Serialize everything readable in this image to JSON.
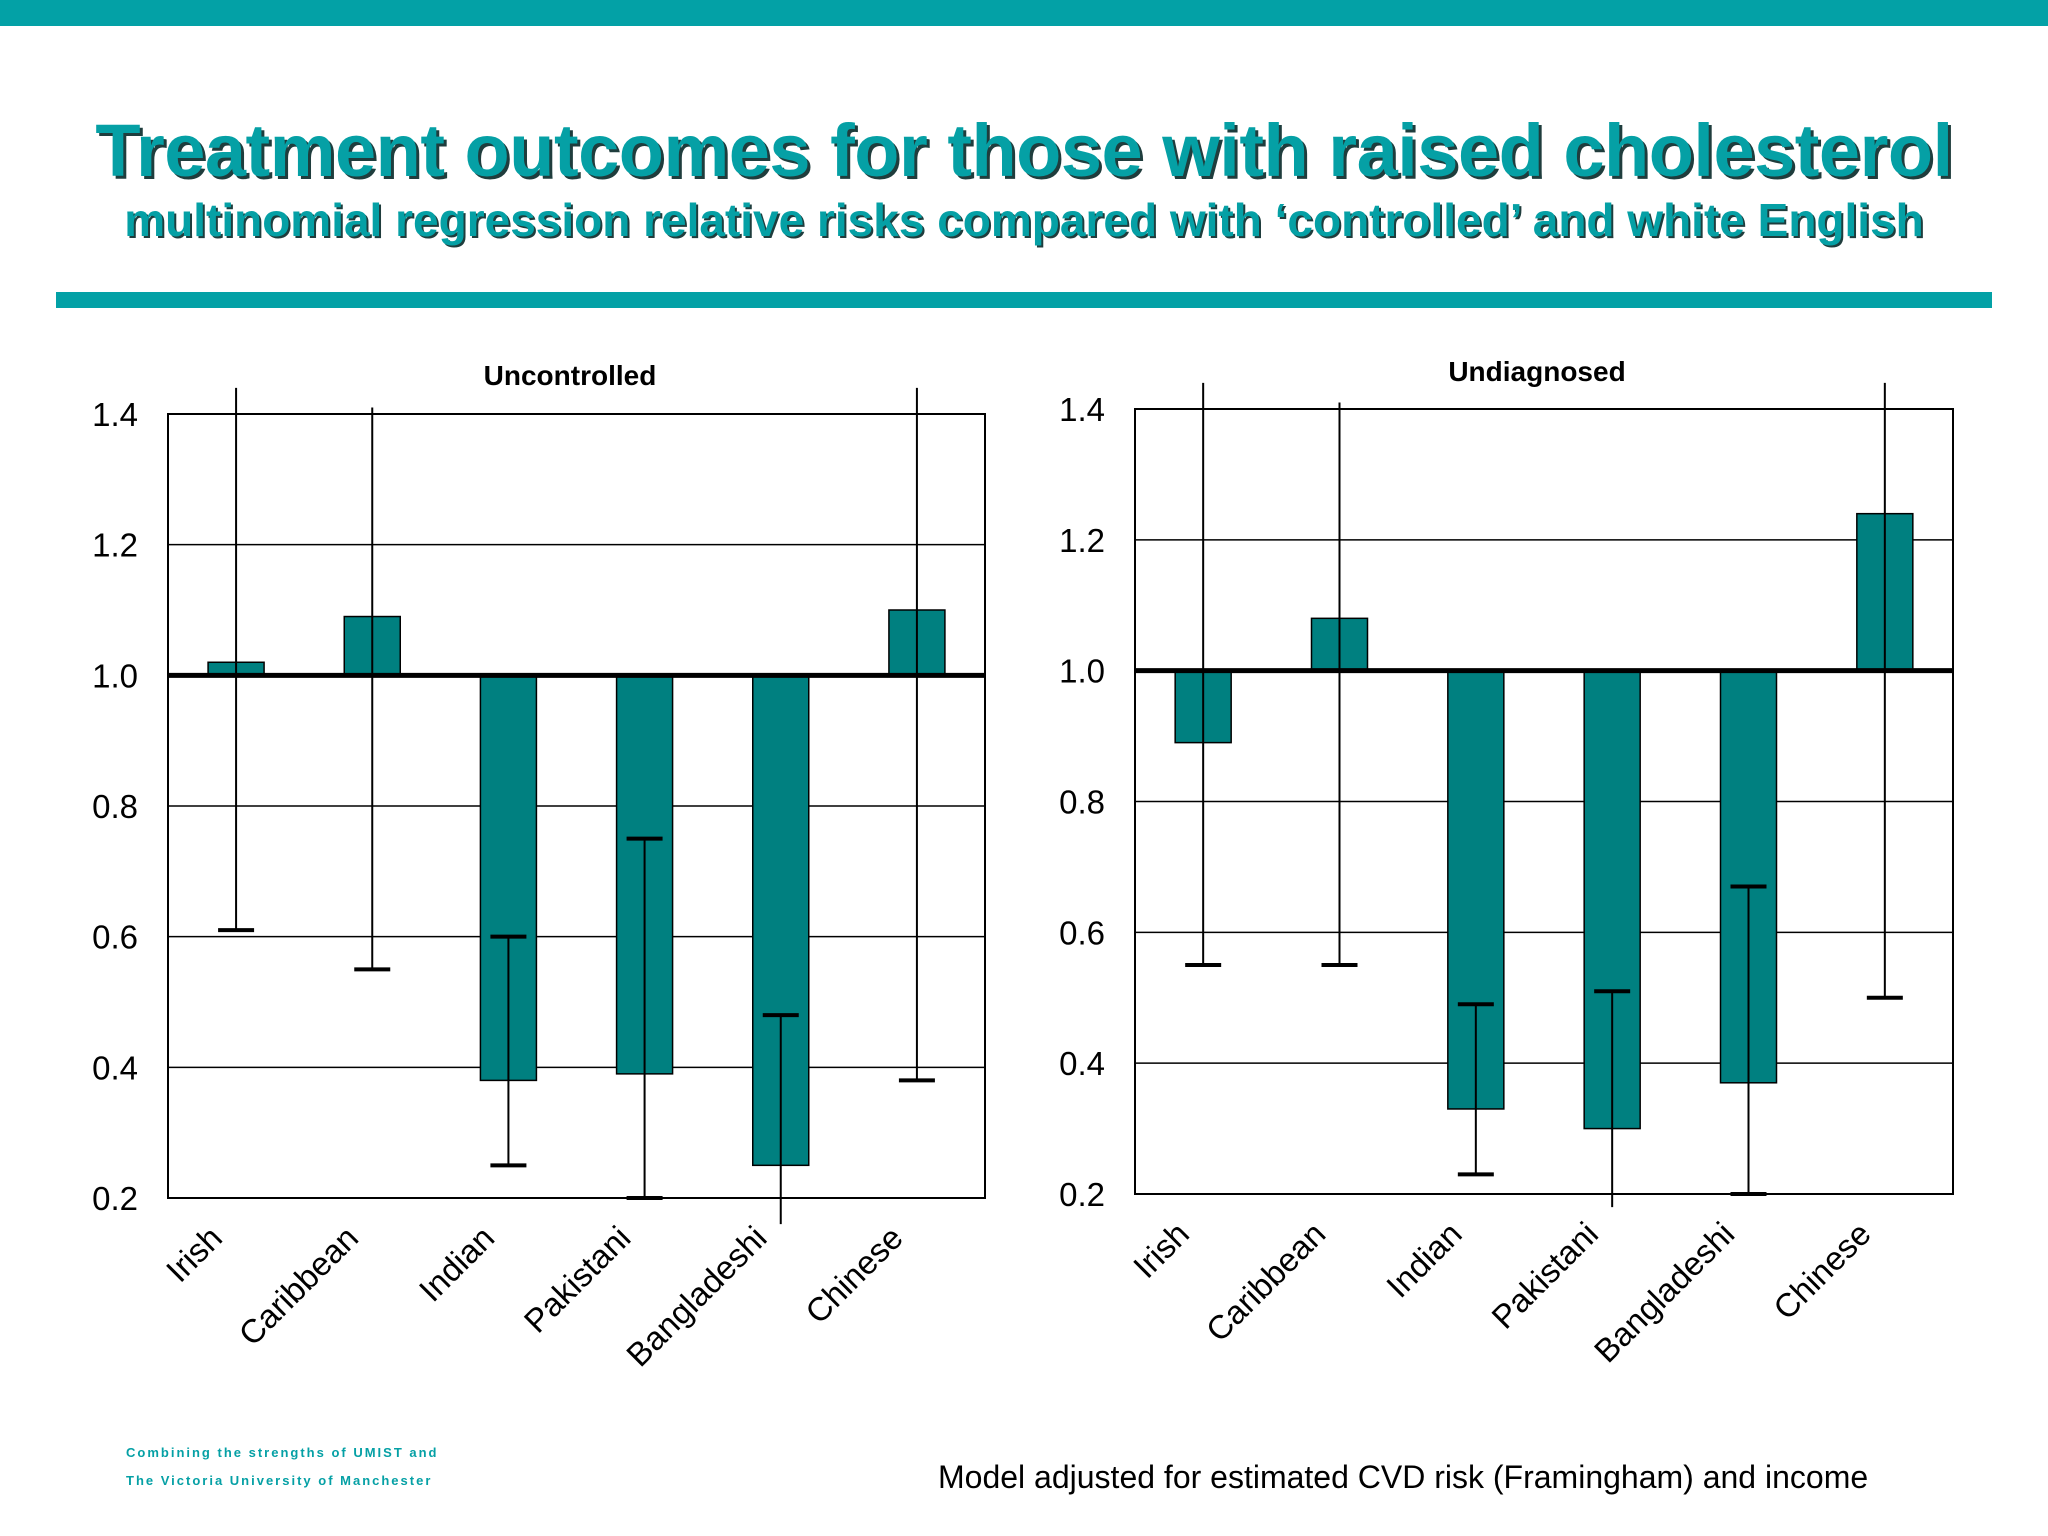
{
  "slide": {
    "title": "Treatment outcomes for those with raised cholesterol",
    "subtitle": "multinomial regression relative risks compared with ‘controlled’ and white English",
    "footnote": "Model adjusted for estimated CVD risk (Framingham) and income",
    "logo_line1": "Combining the strengths of UMIST and",
    "logo_line2": "The Victoria University of Manchester"
  },
  "colors": {
    "accent": "#03a1a6",
    "bar": "#008080",
    "title_shadow": "#1f3d3d"
  },
  "chart_data": [
    {
      "type": "bar",
      "title": "Uncontrolled",
      "categories": [
        "Irish",
        "Caribbean",
        "Indian",
        "Pakistani",
        "Bangladeshi",
        "Chinese"
      ],
      "baseline": 1.0,
      "values": [
        1.02,
        1.09,
        0.38,
        0.39,
        0.25,
        1.1
      ],
      "ci_lower": [
        0.61,
        0.55,
        0.25,
        0.2,
        0.16,
        0.38
      ],
      "ci_upper": [
        1.44,
        1.41,
        0.6,
        0.75,
        0.48,
        1.44
      ],
      "ci_lower_cap": [
        true,
        true,
        true,
        true,
        false,
        true
      ],
      "ci_upper_cap": [
        false,
        false,
        true,
        true,
        true,
        false
      ],
      "ylim": [
        0.2,
        1.4
      ],
      "yticks": [
        "0.2",
        "0.4",
        "0.6",
        "0.8",
        "1.0",
        "1.2",
        "1.4"
      ],
      "grid": true,
      "xlabel": "",
      "ylabel": ""
    },
    {
      "type": "bar",
      "title": "Undiagnosed",
      "categories": [
        "Irish",
        "Caribbean",
        "Indian",
        "Pakistani",
        "Bangladeshi",
        "Chinese"
      ],
      "baseline": 1.0,
      "values": [
        0.89,
        1.08,
        0.33,
        0.3,
        0.37,
        1.24
      ],
      "ci_lower": [
        0.55,
        0.55,
        0.23,
        0.18,
        0.2,
        0.5
      ],
      "ci_upper": [
        1.44,
        1.41,
        0.49,
        0.51,
        0.67,
        1.44
      ],
      "ci_lower_cap": [
        true,
        true,
        true,
        false,
        true,
        true
      ],
      "ci_upper_cap": [
        false,
        false,
        true,
        true,
        true,
        false
      ],
      "ylim": [
        0.2,
        1.4
      ],
      "yticks": [
        "0.2",
        "0.4",
        "0.6",
        "0.8",
        "1.0",
        "1.2",
        "1.4"
      ],
      "grid": true,
      "xlabel": "",
      "ylabel": ""
    }
  ]
}
